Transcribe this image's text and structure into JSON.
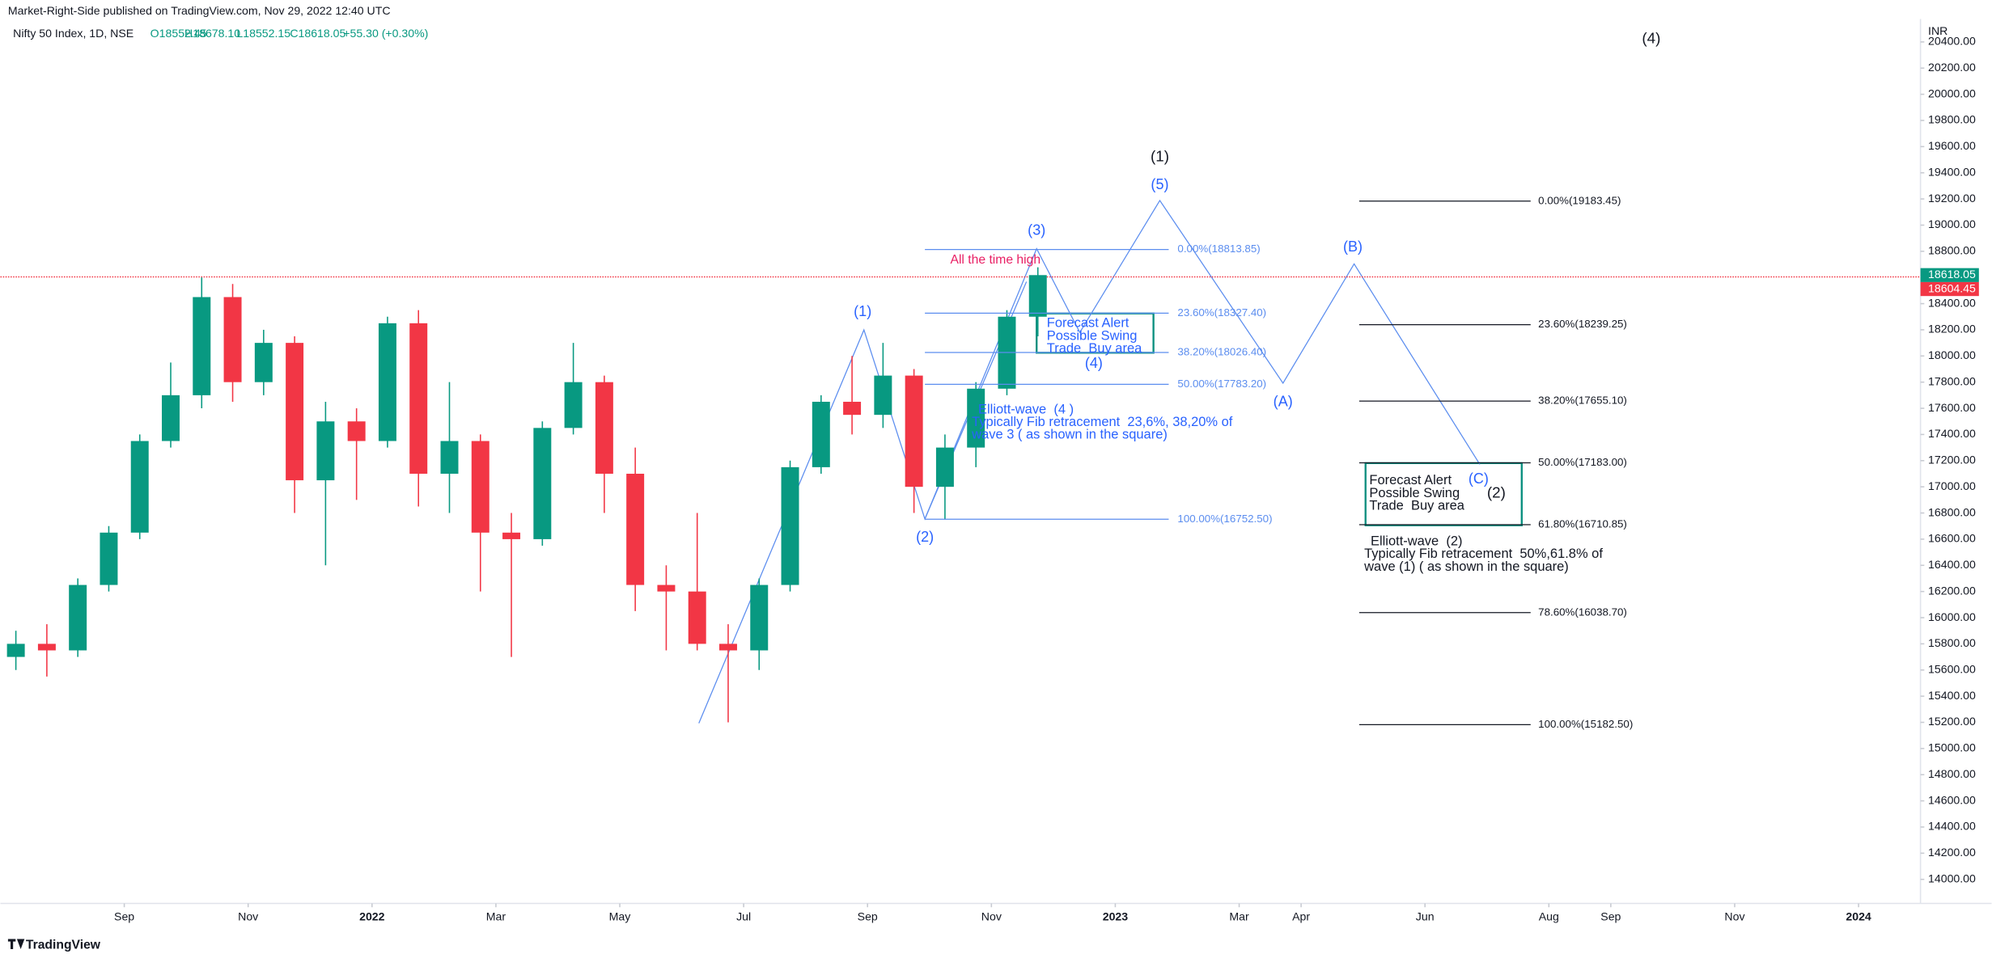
{
  "header": {
    "publisher": "Market-Right-Side published on TradingView.com, Nov 29, 2022 12:40 UTC",
    "symbol": "Nifty 50 Index, 1D, NSE",
    "ohlc": [
      "O18552.45",
      "H18678.10",
      "L18552.15",
      "C18618.05",
      "+55.30 (+0.30%)"
    ],
    "currency": "INR",
    "brand": "TradingView"
  },
  "chart_data": {
    "type": "candlestick",
    "up_color": "#089981",
    "down_color": "#f23645",
    "x": [
      "2021-07",
      "2021-07",
      "2021-08",
      "2021-08",
      "2021-09",
      "2021-09",
      "2021-10",
      "2021-10",
      "2021-11",
      "2021-11",
      "2021-12",
      "2021-12",
      "2022-01",
      "2022-01",
      "2022-02",
      "2022-02",
      "2022-03",
      "2022-03",
      "2022-04",
      "2022-04",
      "2022-05",
      "2022-05",
      "2022-06",
      "2022-06",
      "2022-07",
      "2022-07",
      "2022-08",
      "2022-08",
      "2022-09",
      "2022-09",
      "2022-10",
      "2022-10",
      "2022-11",
      "2022-11"
    ],
    "open": [
      15700,
      15800,
      15750,
      16250,
      16650,
      17350,
      17700,
      18450,
      17800,
      18100,
      17050,
      17500,
      17350,
      18250,
      17100,
      17350,
      16650,
      16600,
      17450,
      17800,
      17100,
      16250,
      16200,
      15800,
      15750,
      16250,
      17150,
      17650,
      17550,
      17850,
      17000,
      17300,
      17750,
      18300
    ],
    "high": [
      15900,
      15950,
      16300,
      16700,
      17400,
      17950,
      18600,
      18550,
      18200,
      18150,
      17650,
      17600,
      18300,
      18350,
      17800,
      17400,
      16800,
      17500,
      18100,
      17850,
      17300,
      16400,
      16800,
      15950,
      16300,
      17200,
      17700,
      18000,
      18100,
      17900,
      17400,
      17800,
      18350,
      18678
    ],
    "low": [
      15600,
      15550,
      15700,
      16200,
      16600,
      17300,
      17600,
      17650,
      17700,
      16800,
      16400,
      16900,
      17300,
      16850,
      16800,
      16200,
      15700,
      16550,
      17400,
      16800,
      16050,
      15750,
      15750,
      15200,
      15600,
      16200,
      17100,
      17400,
      17450,
      16800,
      16750,
      17150,
      17700,
      18150
    ],
    "close": [
      15800,
      15750,
      16250,
      16650,
      17350,
      17700,
      18450,
      17800,
      18100,
      17050,
      17500,
      17350,
      18250,
      17100,
      17350,
      16650,
      16600,
      17450,
      17800,
      17100,
      16250,
      16200,
      15800,
      15750,
      16250,
      17150,
      17650,
      17550,
      17850,
      17000,
      17300,
      17750,
      18300,
      18618
    ],
    "xlim": [
      "2021-07",
      "2024-02"
    ],
    "xticks": [
      {
        "value": "2021-09",
        "label": "Sep"
      },
      {
        "value": "2021-11",
        "label": "Nov"
      },
      {
        "value": "2022-01",
        "label": "2022"
      },
      {
        "value": "2022-03",
        "label": "Mar"
      },
      {
        "value": "2022-05",
        "label": "May"
      },
      {
        "value": "2022-07",
        "label": "Jul"
      },
      {
        "value": "2022-09",
        "label": "Sep"
      },
      {
        "value": "2022-11",
        "label": "Nov"
      },
      {
        "value": "2023-01",
        "label": "2023"
      },
      {
        "value": "2023-03",
        "label": "Mar"
      },
      {
        "value": "2023-04",
        "label": "Apr"
      },
      {
        "value": "2023-06",
        "label": "Jun"
      },
      {
        "value": "2023-08",
        "label": "Aug"
      },
      {
        "value": "2023-09",
        "label": "Sep"
      },
      {
        "value": "2023-11",
        "label": "Nov"
      },
      {
        "value": "2024-01",
        "label": "2024"
      }
    ],
    "ylim": [
      13816,
      20575
    ],
    "yticks": [
      {
        "value": 14000,
        "label": "14000.00"
      },
      {
        "value": 14200,
        "label": "14200.00"
      },
      {
        "value": 14400,
        "label": "14400.00"
      },
      {
        "value": 14600,
        "label": "14600.00"
      },
      {
        "value": 14800,
        "label": "14800.00"
      },
      {
        "value": 15000,
        "label": "15000.00"
      },
      {
        "value": 15200,
        "label": "15200.00"
      },
      {
        "value": 15400,
        "label": "15400.00"
      },
      {
        "value": 15600,
        "label": "15600.00"
      },
      {
        "value": 15800,
        "label": "15800.00"
      },
      {
        "value": 16000,
        "label": "16000.00"
      },
      {
        "value": 16200,
        "label": "16200.00"
      },
      {
        "value": 16400,
        "label": "16400.00"
      },
      {
        "value": 16600,
        "label": "16600.00"
      },
      {
        "value": 16800,
        "label": "16800.00"
      },
      {
        "value": 17000,
        "label": "17000.00"
      },
      {
        "value": 17200,
        "label": "17200.00"
      },
      {
        "value": 17400,
        "label": "17400.00"
      },
      {
        "value": 17600,
        "label": "17600.00"
      },
      {
        "value": 17800,
        "label": "17800.00"
      },
      {
        "value": 18000,
        "label": "18000.00"
      },
      {
        "value": 18200,
        "label": "18200.00"
      },
      {
        "value": 18400,
        "label": "18400.00"
      },
      {
        "value": 18600,
        "label": "18600.00"
      },
      {
        "value": 18800,
        "label": "18800.00"
      },
      {
        "value": 19000,
        "label": "19000.00"
      },
      {
        "value": 19200,
        "label": "19200.00"
      },
      {
        "value": 19400,
        "label": "19400.00"
      },
      {
        "value": 19600,
        "label": "19600.00"
      },
      {
        "value": 19800,
        "label": "19800.00"
      },
      {
        "value": 20000,
        "label": "20000.00"
      },
      {
        "value": 20200,
        "label": "20200.00"
      },
      {
        "value": 20400,
        "label": "20400.00"
      }
    ],
    "last_price": {
      "value": 18618.05,
      "label": "18618.05",
      "color": "#089981"
    },
    "ath_line": {
      "value": 18604.45,
      "label": "18604.45",
      "color": "#f23645"
    },
    "annotations": {
      "ath_text": "All the time high",
      "waves_blue": [
        "(1)",
        "(2)",
        "(3)",
        "(4)",
        "(5)",
        "(A)",
        "(B)",
        "(C)"
      ],
      "waves_black": [
        "(1)",
        "(4)",
        "(2)"
      ],
      "fib1": [
        {
          "value": 18813.85,
          "label": "0.00%(18813.85)"
        },
        {
          "value": 18327.4,
          "label": "23.60%(18327.40)"
        },
        {
          "value": 18026.4,
          "label": "38.20%(18026.40)"
        },
        {
          "value": 17783.2,
          "label": "50.00%(17783.20)"
        },
        {
          "value": 16752.5,
          "label": "100.00%(16752.50)"
        }
      ],
      "fib2": [
        {
          "value": 19183.45,
          "label": "0.00%(19183.45)"
        },
        {
          "value": 18239.25,
          "label": "23.60%(18239.25)"
        },
        {
          "value": 17655.1,
          "label": "38.20%(17655.10)"
        },
        {
          "value": 17183.0,
          "label": "50.00%(17183.00)"
        },
        {
          "value": 16710.85,
          "label": "61.80%(16710.85)"
        },
        {
          "value": 16038.7,
          "label": "78.60%(16038.70)"
        },
        {
          "value": 15182.5,
          "label": "100.00%(15182.50)"
        }
      ],
      "box1": [
        "Forecast Alert",
        "Possible Swing",
        "Trade  Buy area"
      ],
      "box2": [
        "Forecast Alert",
        "Possible Swing",
        "Trade  Buy area"
      ],
      "note4": [
        "Elliott-wave  (4 )",
        "Typically Fib retracement  23,6%, 38,20% of",
        "wave 3 ( as shown in the square)"
      ],
      "note2": [
        "Elliott-wave  (2)",
        "Typically Fib retracement  50%,61.8% of",
        "wave (1) ( as shown in the square)"
      ]
    }
  }
}
